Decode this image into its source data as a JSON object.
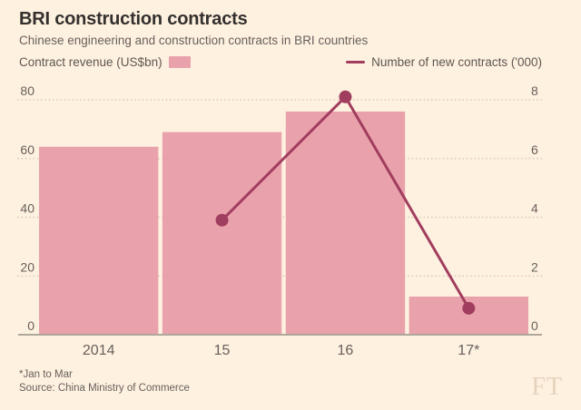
{
  "chart_data": {
    "type": "bar",
    "title": "BRI construction contracts",
    "subtitle": "Chinese engineering and construction contracts in BRI countries",
    "categories": [
      "2014",
      "15",
      "16",
      "17*"
    ],
    "series": [
      {
        "name": "Contract revenue (US$bn)",
        "chart_type": "bar",
        "axis": "left",
        "values": [
          64,
          69,
          76,
          13
        ]
      },
      {
        "name": "Number of new contracts ('000)",
        "chart_type": "line",
        "axis": "right",
        "values": [
          null,
          3.9,
          8.1,
          0.9
        ]
      }
    ],
    "left_axis": {
      "ticks": [
        0,
        20,
        40,
        60,
        80
      ],
      "range": [
        0,
        80
      ]
    },
    "right_axis": {
      "ticks": [
        0,
        2,
        4,
        6,
        8
      ],
      "range": [
        0,
        8
      ]
    },
    "grid": "horizontal-dotted",
    "legend_position": "top"
  },
  "footer": {
    "footnote": "*Jan to Mar",
    "source": "Source: China Ministry of Commerce",
    "logo": "FT"
  },
  "colors": {
    "background": "#FFF1E0",
    "bar": "#E9A2AB",
    "line": "#A13D5E",
    "title": "#33302E",
    "text": "#66605C",
    "grid_dots": "#C9C0B4",
    "baseline": "#AFA79B",
    "logo": "#E4D3BC"
  }
}
